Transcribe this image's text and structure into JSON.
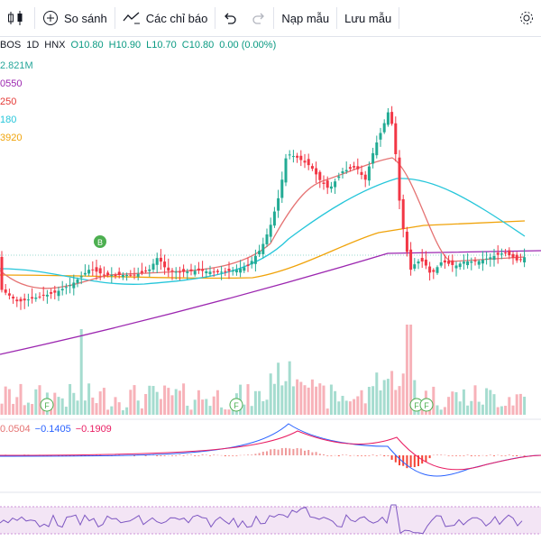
{
  "toolbar": {
    "compare_label": "So sánh",
    "indicators_label": "Các chỉ báo",
    "load_template_label": "Nạp mẫu",
    "save_template_label": "Lưu mẫu"
  },
  "legend": {
    "symbol": "BOS",
    "interval": "1D",
    "exchange": "HNX",
    "open": "O10.80",
    "high": "H10.90",
    "low": "L10.70",
    "close": "C10.80",
    "change": "0.00 (0.00%)",
    "volume": "2.821M",
    "ma1": "0550",
    "ma2": "250",
    "ma3": "180",
    "ma4": "3920"
  },
  "markers": {
    "buy": "B",
    "financial": "F"
  },
  "macd": {
    "v1": "0.0504",
    "v2": "−0.1405",
    "v3": "−0.1909"
  },
  "colors": {
    "up": "#22ab94",
    "down": "#f23645",
    "ma_purple": "#9c27b0",
    "ma_red": "#e57373",
    "ma_teal": "#26c6da",
    "ma_orange": "#f0a30a",
    "rsi_fill": "#f3e5f5"
  }
}
